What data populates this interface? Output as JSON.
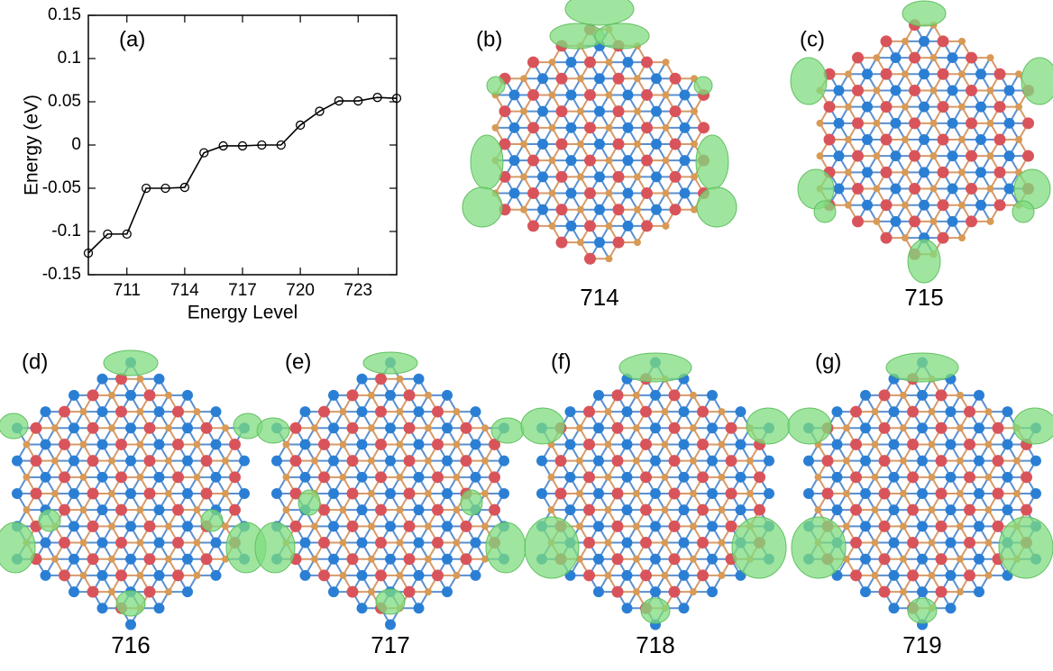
{
  "chart_data": {
    "type": "line",
    "xlabel": "Energy Level",
    "ylabel": "Energy (eV)",
    "annotation": "(a)",
    "x": [
      709,
      710,
      711,
      712,
      713,
      714,
      715,
      716,
      717,
      718,
      719,
      720,
      721,
      722,
      723,
      724,
      725
    ],
    "series": [
      {
        "color": "#000000",
        "values": [
          -0.125,
          -0.103,
          -0.103,
          -0.05,
          -0.05,
          -0.049,
          -0.009,
          -0.001,
          -0.001,
          0.0,
          0.0,
          0.023,
          0.039,
          0.051,
          0.051,
          0.055,
          0.054
        ]
      }
    ],
    "xlim": [
      709,
      725
    ],
    "xticks": [
      711,
      714,
      717,
      720,
      723
    ],
    "ylim": [
      -0.15,
      0.15
    ],
    "yticks": [
      -0.15,
      -0.1,
      -0.05,
      0,
      0.05,
      0.1,
      0.15
    ]
  },
  "panels": [
    {
      "label": "(b)",
      "caption": "714"
    },
    {
      "label": "(c)",
      "caption": "715"
    },
    {
      "label": "(d)",
      "caption": "716"
    },
    {
      "label": "(e)",
      "caption": "717"
    },
    {
      "label": "(f)",
      "caption": "718"
    },
    {
      "label": "(g)",
      "caption": "719"
    }
  ]
}
